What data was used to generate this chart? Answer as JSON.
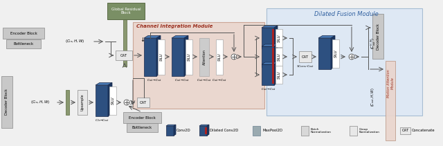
{
  "bg_color": "#f0f0f0",
  "channel_integration_bg": "#e8d0c5",
  "dilated_fusion_bg": "#dce6f0",
  "channel_integration_label": "Channel Integration Module",
  "dilated_fusion_label": "Dilated Fusion Module",
  "global_residual_label": "Global Residual\nBlock",
  "encoder_block_label": "Encoder Block",
  "bottleneck_label": "Bottleneck",
  "decoder_block_top_label": "Decoder Block",
  "decoder_block_left_label": "Decoder Block",
  "motion_attention_label": "Motion Attention\nModule",
  "conv2d_color": "#2c4f7c",
  "grb_color": "#6b7c5a",
  "arrow_color": "#555555"
}
